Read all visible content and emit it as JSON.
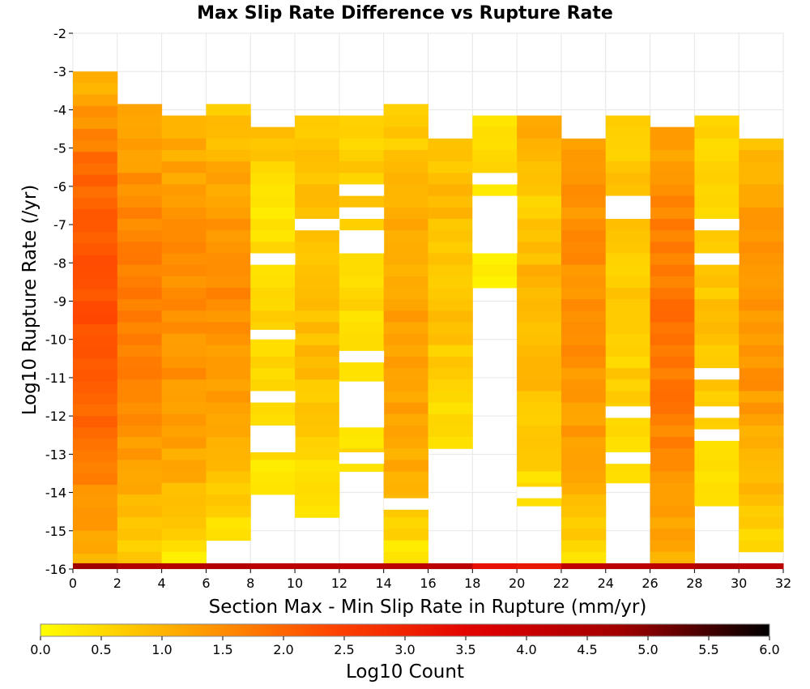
{
  "chart_data": {
    "type": "heatmap",
    "title": "Max Slip Rate Difference vs Rupture Rate",
    "xlabel": "Section Max - Min Slip Rate in Rupture (mm/yr)",
    "ylabel": "Log10 Rupture Rate (/yr)",
    "xlim": [
      0,
      32
    ],
    "ylim": [
      -16,
      -2
    ],
    "x_ticks": [
      "0",
      "2",
      "4",
      "6",
      "8",
      "10",
      "12",
      "14",
      "16",
      "18",
      "20",
      "22",
      "24",
      "26",
      "28",
      "30",
      "32"
    ],
    "y_ticks": [
      "-2",
      "-3",
      "-4",
      "-5",
      "-6",
      "-7",
      "-8",
      "-9",
      "-10",
      "-11",
      "-12",
      "-13",
      "-14",
      "-15",
      "-16"
    ],
    "x_bin_width": 2,
    "y_bin_height": 0.3,
    "grid": true,
    "colorscale": {
      "label": "Log10 Count",
      "range": [
        0.0,
        6.0
      ],
      "ticks": [
        "0.0",
        "0.5",
        "1.0",
        "1.5",
        "2.0",
        "2.5",
        "3.0",
        "3.5",
        "4.0",
        "4.5",
        "5.0",
        "5.5",
        "6.0"
      ],
      "colors": [
        "#ffff00",
        "#ffa500",
        "#ff4500",
        "#e00000",
        "#a00000",
        "#000000"
      ]
    },
    "zero_slip_rate_row": {
      "y_range": [
        -16.0,
        -15.85
      ],
      "values": [
        4.8,
        4.5,
        4.4,
        4.4,
        4.3,
        4.3,
        4.2,
        4.3,
        4.3,
        3.3,
        3.2,
        4.2,
        4.3,
        4.3,
        4.5,
        4.3
      ]
    },
    "columns": [
      {
        "x": [
          0,
          2
        ],
        "y_top": -3.0,
        "y_bottom": -15.85,
        "profile": [
          1.0,
          2.0,
          2.3,
          2.2,
          1.7,
          1.1
        ]
      },
      {
        "x": [
          2,
          4
        ],
        "y_top": -3.85,
        "y_bottom": -15.85,
        "profile": [
          1.2,
          1.5,
          1.7,
          1.6,
          1.3,
          0.6
        ]
      },
      {
        "x": [
          4,
          6
        ],
        "y_top": -4.15,
        "y_bottom": -15.85,
        "profile": [
          1.0,
          1.4,
          1.5,
          1.4,
          1.1,
          0.3
        ]
      },
      {
        "x": [
          6,
          8
        ],
        "y_top": -3.85,
        "y_bottom": -15.25,
        "profile": [
          0.7,
          1.3,
          1.5,
          1.4,
          1.0,
          0.4
        ]
      },
      {
        "x": [
          8,
          10
        ],
        "y_top": -4.45,
        "y_bottom": -14.15,
        "profile": [
          0.8,
          0.4,
          0.4,
          0.6,
          0.6,
          0.3
        ]
      },
      {
        "x": [
          10,
          12
        ],
        "y_top": -4.15,
        "y_bottom": -14.75,
        "profile": [
          0.6,
          0.9,
          0.8,
          0.9,
          0.7,
          0.3
        ]
      },
      {
        "x": [
          12,
          14
        ],
        "y_top": -4.15,
        "y_bottom": -13.55,
        "profile": [
          0.6,
          0.7,
          0.6,
          0.5,
          0.5,
          0.4
        ]
      },
      {
        "x": [
          14,
          16
        ],
        "y_top": -3.85,
        "y_bottom": -15.85,
        "profile": [
          0.6,
          1.0,
          1.2,
          1.3,
          1.1,
          0.3
        ]
      },
      {
        "x": [
          16,
          18
        ],
        "y_top": -4.75,
        "y_bottom": -12.95,
        "profile": [
          0.8,
          0.9,
          0.8,
          0.8,
          0.6,
          0.4
        ]
      },
      {
        "x": [
          18,
          20
        ],
        "y_top": -4.15,
        "y_bottom": -8.65,
        "profile": [
          0.5,
          0.5,
          0.4,
          0.4,
          0.3,
          0.3
        ]
      },
      {
        "x": [
          20,
          22
        ],
        "y_top": -4.15,
        "y_bottom": -14.45,
        "profile": [
          1.1,
          0.6,
          1.0,
          0.9,
          0.8,
          0.4
        ]
      },
      {
        "x": [
          22,
          24
        ],
        "y_top": -4.75,
        "y_bottom": -15.85,
        "profile": [
          1.2,
          1.5,
          1.5,
          1.4,
          1.1,
          0.5
        ]
      },
      {
        "x": [
          24,
          26
        ],
        "y_top": -4.15,
        "y_bottom": -13.85,
        "profile": [
          0.7,
          0.8,
          0.7,
          0.7,
          0.6,
          0.3
        ]
      },
      {
        "x": [
          26,
          28
        ],
        "y_top": -4.45,
        "y_bottom": -15.85,
        "profile": [
          1.2,
          1.6,
          1.8,
          1.8,
          1.5,
          1.1
        ]
      },
      {
        "x": [
          28,
          30
        ],
        "y_top": -4.15,
        "y_bottom": -14.45,
        "profile": [
          0.6,
          0.5,
          0.7,
          0.8,
          0.6,
          0.4
        ]
      },
      {
        "x": [
          30,
          32
        ],
        "y_top": -4.75,
        "y_bottom": -15.55,
        "profile": [
          0.8,
          1.4,
          1.4,
          1.4,
          1.0,
          0.5
        ]
      }
    ],
    "empty_bins": [
      {
        "x": [
          8,
          10
        ],
        "y": [
          -8.05,
          -7.75
        ]
      },
      {
        "x": [
          8,
          10
        ],
        "y": [
          -10.0,
          -9.75
        ]
      },
      {
        "x": [
          8,
          10
        ],
        "y": [
          -11.65,
          -11.35
        ]
      },
      {
        "x": [
          8,
          10
        ],
        "y": [
          -12.95,
          -12.25
        ]
      },
      {
        "x": [
          10,
          12
        ],
        "y": [
          -7.15,
          -6.85
        ]
      },
      {
        "x": [
          12,
          14
        ],
        "y": [
          -6.25,
          -5.95
        ]
      },
      {
        "x": [
          12,
          14
        ],
        "y": [
          -6.85,
          -6.55
        ]
      },
      {
        "x": [
          12,
          14
        ],
        "y": [
          -7.75,
          -7.15
        ]
      },
      {
        "x": [
          12,
          14
        ],
        "y": [
          -10.6,
          -10.3
        ]
      },
      {
        "x": [
          12,
          14
        ],
        "y": [
          -12.3,
          -11.1
        ]
      },
      {
        "x": [
          12,
          14
        ],
        "y": [
          -13.25,
          -12.95
        ]
      },
      {
        "x": [
          14,
          16
        ],
        "y": [
          -14.45,
          -14.15
        ]
      },
      {
        "x": [
          18,
          20
        ],
        "y": [
          -5.95,
          -5.65
        ]
      },
      {
        "x": [
          18,
          20
        ],
        "y": [
          -7.75,
          -6.25
        ]
      },
      {
        "x": [
          20,
          22
        ],
        "y": [
          -14.15,
          -13.85
        ]
      },
      {
        "x": [
          24,
          26
        ],
        "y": [
          -6.85,
          -6.25
        ]
      },
      {
        "x": [
          24,
          26
        ],
        "y": [
          -12.05,
          -11.75
        ]
      },
      {
        "x": [
          24,
          26
        ],
        "y": [
          -13.25,
          -12.95
        ]
      },
      {
        "x": [
          28,
          30
        ],
        "y": [
          -7.15,
          -6.85
        ]
      },
      {
        "x": [
          28,
          30
        ],
        "y": [
          -8.05,
          -7.75
        ]
      },
      {
        "x": [
          28,
          30
        ],
        "y": [
          -11.05,
          -10.75
        ]
      },
      {
        "x": [
          28,
          30
        ],
        "y": [
          -12.05,
          -11.75
        ]
      },
      {
        "x": [
          28,
          30
        ],
        "y": [
          -12.65,
          -12.35
        ]
      }
    ]
  }
}
